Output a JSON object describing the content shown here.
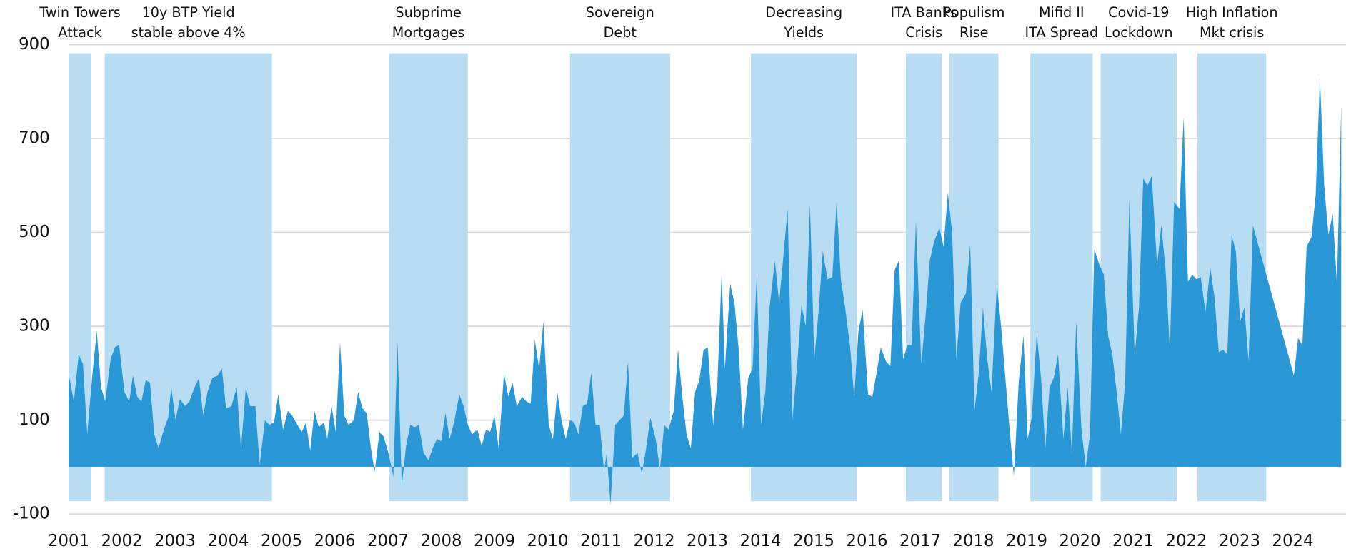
{
  "chart_data": {
    "type": "area",
    "color": "#2a98d6",
    "band_color": "#b8dcf2",
    "grid": true,
    "xlim": [
      2001,
      2025
    ],
    "xticks": [
      2001,
      2002,
      2003,
      2004,
      2005,
      2006,
      2007,
      2008,
      2009,
      2010,
      2011,
      2012,
      2013,
      2014,
      2015,
      2016,
      2017,
      2018,
      2019,
      2020,
      2021,
      2022,
      2023,
      2024
    ],
    "ylim": [
      -100,
      900
    ],
    "yticks": [
      -100,
      100,
      300,
      500,
      700,
      900
    ],
    "events": [
      {
        "label": [
          "Twin Towers",
          "Attack"
        ],
        "start": 2001.0,
        "end": 2001.43
      },
      {
        "label": [
          "10y BTP Yield",
          "stable above 4%"
        ],
        "start": 2001.68,
        "end": 2004.82
      },
      {
        "label": [
          "Subprime",
          "Mortgages"
        ],
        "start": 2007.02,
        "end": 2008.5
      },
      {
        "label": [
          "Sovereign",
          "Debt"
        ],
        "start": 2010.42,
        "end": 2012.3
      },
      {
        "label": [
          "Decreasing",
          "Yields"
        ],
        "start": 2013.82,
        "end": 2015.81
      },
      {
        "label": [
          "ITA Banks",
          "Crisis"
        ],
        "start": 2016.73,
        "end": 2017.41
      },
      {
        "label": [
          "Populism",
          "Rise"
        ],
        "start": 2017.55,
        "end": 2018.47
      },
      {
        "label": [
          "Mifid II",
          "ITA Spread"
        ],
        "start": 2019.07,
        "end": 2020.24
      },
      {
        "label": [
          "Covid-19",
          "Lockdown"
        ],
        "start": 2020.39,
        "end": 2021.82
      },
      {
        "label": [
          "High Inflation",
          "Mkt crisis"
        ],
        "start": 2022.21,
        "end": 2023.5
      }
    ],
    "x": [
      2001.0,
      2001.1,
      2001.19,
      2001.27,
      2001.35,
      2001.45,
      2001.53,
      2001.61,
      2001.69,
      2001.79,
      2001.87,
      2001.95,
      2002.05,
      2002.14,
      2002.21,
      2002.29,
      2002.37,
      2002.45,
      2002.53,
      2002.61,
      2002.69,
      2002.79,
      2002.87,
      2002.93,
      2003.01,
      2003.09,
      2003.19,
      2003.27,
      2003.35,
      2003.45,
      2003.53,
      2003.61,
      2003.7,
      2003.8,
      2003.88,
      2003.96,
      2004.06,
      2004.16,
      2004.24,
      2004.33,
      2004.41,
      2004.51,
      2004.59,
      2004.69,
      2004.77,
      2004.86,
      2004.94,
      2005.03,
      2005.12,
      2005.2,
      2005.3,
      2005.38,
      2005.46,
      2005.54,
      2005.62,
      2005.7,
      2005.8,
      2005.86,
      2005.94,
      2006.02,
      2006.1,
      2006.18,
      2006.26,
      2006.36,
      2006.44,
      2006.52,
      2006.6,
      2006.68,
      2006.75,
      2006.84,
      2006.92,
      2007.02,
      2007.1,
      2007.18,
      2007.26,
      2007.34,
      2007.42,
      2007.5,
      2007.58,
      2007.67,
      2007.76,
      2007.84,
      2007.92,
      2008.0,
      2008.08,
      2008.16,
      2008.25,
      2008.34,
      2008.42,
      2008.5,
      2008.58,
      2008.68,
      2008.76,
      2008.84,
      2008.92,
      2009.0,
      2009.08,
      2009.18,
      2009.26,
      2009.34,
      2009.42,
      2009.52,
      2009.6,
      2009.68,
      2009.76,
      2009.84,
      2009.92,
      2010.02,
      2010.1,
      2010.18,
      2010.26,
      2010.34,
      2010.42,
      2010.5,
      2010.58,
      2010.66,
      2010.74,
      2010.82,
      2010.9,
      2010.98,
      2011.06,
      2011.11,
      2011.18,
      2011.27,
      2011.35,
      2011.43,
      2011.51,
      2011.59,
      2011.69,
      2011.77,
      2011.85,
      2011.93,
      2012.03,
      2012.11,
      2012.19,
      2012.27,
      2012.37,
      2012.45,
      2012.53,
      2012.61,
      2012.69,
      2012.77,
      2012.85,
      2012.93,
      2013.01,
      2013.11,
      2013.19,
      2013.27,
      2013.33,
      2013.43,
      2013.51,
      2013.59,
      2013.67,
      2013.77,
      2013.85,
      2013.93,
      2014.01,
      2014.09,
      2014.17,
      2014.27,
      2014.35,
      2014.43,
      2014.51,
      2014.6,
      2014.69,
      2014.77,
      2014.85,
      2014.93,
      2015.01,
      2015.09,
      2015.17,
      2015.26,
      2015.35,
      2015.43,
      2015.51,
      2015.59,
      2015.68,
      2015.76,
      2015.84,
      2015.92,
      2016.02,
      2016.1,
      2016.18,
      2016.26,
      2016.36,
      2016.44,
      2016.52,
      2016.6,
      2016.68,
      2016.76,
      2016.84,
      2016.92,
      2017.02,
      2017.1,
      2017.18,
      2017.26,
      2017.36,
      2017.44,
      2017.52,
      2017.6,
      2017.68,
      2017.76,
      2017.86,
      2017.94,
      2018.02,
      2018.1,
      2018.18,
      2018.26,
      2018.34,
      2018.44,
      2018.52,
      2018.6,
      2018.68,
      2018.76,
      2018.85,
      2018.94,
      2019.02,
      2019.1,
      2019.19,
      2019.27,
      2019.35,
      2019.43,
      2019.51,
      2019.59,
      2019.69,
      2019.77,
      2019.85,
      2019.93,
      2020.03,
      2020.11,
      2020.19,
      2020.27,
      2020.37,
      2020.45,
      2020.53,
      2020.61,
      2020.69,
      2020.77,
      2020.85,
      2020.93,
      2021.03,
      2021.11,
      2021.19,
      2021.27,
      2021.35,
      2021.45,
      2021.53,
      2021.61,
      2021.69,
      2021.77,
      2021.87,
      2021.95,
      2022.03,
      2022.11,
      2022.19,
      2022.27,
      2022.36,
      2022.45,
      2022.53,
      2022.61,
      2022.69,
      2022.77,
      2022.85,
      2022.93,
      2023.01,
      2023.09,
      2023.17,
      2023.25,
      2024.02,
      2024.1,
      2024.18,
      2024.26,
      2024.35,
      2024.43,
      2024.51,
      2024.59,
      2024.67,
      2024.75,
      2024.83,
      2024.91
    ],
    "values": [
      200,
      140,
      240,
      220,
      70,
      200,
      290,
      170,
      140,
      230,
      255,
      260,
      160,
      140,
      195,
      150,
      140,
      185,
      180,
      70,
      40,
      80,
      105,
      170,
      100,
      145,
      130,
      140,
      165,
      190,
      110,
      160,
      190,
      195,
      210,
      125,
      130,
      170,
      40,
      170,
      130,
      130,
      5,
      100,
      90,
      95,
      155,
      80,
      120,
      110,
      90,
      75,
      95,
      35,
      120,
      85,
      95,
      60,
      130,
      75,
      265,
      110,
      90,
      100,
      160,
      125,
      115,
      40,
      -10,
      75,
      65,
      25,
      -20,
      265,
      -40,
      45,
      90,
      85,
      90,
      30,
      15,
      40,
      60,
      55,
      115,
      60,
      100,
      155,
      130,
      90,
      70,
      80,
      45,
      80,
      75,
      110,
      40,
      200,
      150,
      180,
      130,
      150,
      140,
      135,
      270,
      210,
      310,
      90,
      60,
      160,
      100,
      60,
      100,
      95,
      70,
      130,
      135,
      200,
      90,
      90,
      -10,
      30,
      -80,
      90,
      100,
      110,
      225,
      20,
      30,
      -15,
      40,
      105,
      60,
      -5,
      90,
      80,
      120,
      250,
      150,
      70,
      40,
      160,
      185,
      250,
      255,
      90,
      180,
      415,
      210,
      390,
      350,
      250,
      80,
      190,
      210,
      410,
      90,
      160,
      340,
      440,
      350,
      450,
      550,
      100,
      220,
      345,
      300,
      560,
      230,
      330,
      460,
      400,
      405,
      565,
      400,
      340,
      260,
      150,
      290,
      335,
      155,
      150,
      200,
      255,
      225,
      215,
      420,
      440,
      230,
      260,
      260,
      525,
      220,
      320,
      440,
      480,
      510,
      470,
      585,
      500,
      230,
      350,
      370,
      475,
      120,
      200,
      340,
      230,
      160,
      390,
      300,
      190,
      80,
      -20,
      180,
      280,
      60,
      110,
      285,
      190,
      40,
      170,
      190,
      240,
      60,
      170,
      30,
      310,
      80,
      0,
      70,
      465,
      430,
      410,
      280,
      240,
      160,
      70,
      180,
      570,
      240,
      340,
      615,
      600,
      620,
      430,
      515,
      420,
      250,
      565,
      550,
      745,
      395,
      410,
      400,
      405,
      330,
      425,
      360,
      245,
      250,
      240,
      495,
      460,
      310,
      340,
      225,
      515,
      195,
      275,
      260,
      470,
      490,
      580,
      830,
      600,
      495,
      540,
      390,
      770
    ]
  }
}
